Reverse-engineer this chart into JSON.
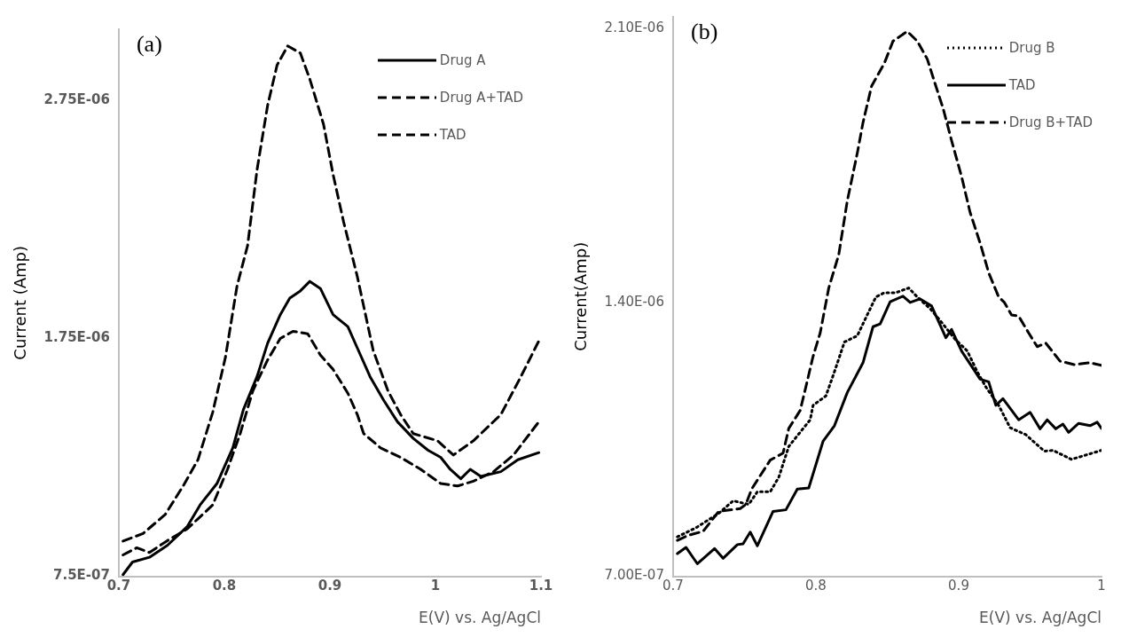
{
  "chart_data": [
    {
      "type": "line",
      "ylabel": "Current (Amp)",
      "xlabel": "E(V) vs. Ag/AgCl",
      "annotations": [
        "(a)"
      ],
      "legend": "top right",
      "marker": "none",
      "xlim": [
        0.7,
        1.1
      ],
      "xticks": [
        0.7,
        0.8,
        0.9,
        1,
        1.1
      ],
      "ylim": [
        7.5e-07,
        3.05e-06
      ],
      "yticks": [
        {
          "value": 7.5e-07,
          "label": "7.5E-07"
        },
        {
          "value": 1.75e-06,
          "label": "1.75E-06"
        },
        {
          "value": 2.75e-06,
          "label": "2.75E-06"
        }
      ],
      "series": [
        {
          "name": "Drug A",
          "color": "#000000",
          "line_style": "solid",
          "x": [
            0.704,
            0.713,
            0.729,
            0.746,
            0.765,
            0.777,
            0.793,
            0.808,
            0.818,
            0.831,
            0.841,
            0.853,
            0.862,
            0.872,
            0.881,
            0.891,
            0.903,
            0.917,
            0.926,
            0.938,
            0.951,
            0.964,
            0.979,
            0.993,
            1.005,
            1.014,
            1.024,
            1.033,
            1.043,
            1.062,
            1.078,
            1.098
          ],
          "values": [
            7.57e-07,
            8.1e-07,
            8.3e-07,
            8.8e-07,
            9.6e-07,
            1.05e-06,
            1.14e-06,
            1.29e-06,
            1.45e-06,
            1.59e-06,
            1.73e-06,
            1.85e-06,
            1.92e-06,
            1.95e-06,
            1.99e-06,
            1.96e-06,
            1.85e-06,
            1.8e-06,
            1.71e-06,
            1.59e-06,
            1.49e-06,
            1.4e-06,
            1.33e-06,
            1.28e-06,
            1.25e-06,
            1.2e-06,
            1.16e-06,
            1.2e-06,
            1.17e-06,
            1.19e-06,
            1.24e-06,
            1.27e-06
          ]
        },
        {
          "name": "Drug A+TAD",
          "color": "#000000",
          "line_style": "dashed",
          "x": [
            0.704,
            0.723,
            0.744,
            0.761,
            0.775,
            0.789,
            0.801,
            0.812,
            0.822,
            0.831,
            0.841,
            0.85,
            0.86,
            0.872,
            0.881,
            0.894,
            0.903,
            0.913,
            0.926,
            0.941,
            0.955,
            0.967,
            0.979,
            1.002,
            1.017,
            1.036,
            1.062,
            1.081,
            1.098
          ],
          "values": [
            8.98e-07,
            9.3e-07,
            1.01e-06,
            1.13e-06,
            1.24e-06,
            1.44e-06,
            1.67e-06,
            1.97e-06,
            2.14e-06,
            2.46e-06,
            2.73e-06,
            2.9e-06,
            2.98e-06,
            2.95e-06,
            2.84e-06,
            2.65e-06,
            2.44e-06,
            2.24e-06,
            2.01e-06,
            1.7e-06,
            1.53e-06,
            1.43e-06,
            1.35e-06,
            1.32e-06,
            1.26e-06,
            1.32e-06,
            1.43e-06,
            1.59e-06,
            1.74e-06
          ]
        },
        {
          "name": "TAD",
          "color": "#000000",
          "line_style": "dashed",
          "x": [
            0.704,
            0.717,
            0.729,
            0.746,
            0.765,
            0.777,
            0.789,
            0.803,
            0.815,
            0.827,
            0.841,
            0.853,
            0.865,
            0.879,
            0.891,
            0.903,
            0.917,
            0.926,
            0.932,
            0.948,
            0.967,
            0.986,
            1.005,
            1.021,
            1.036,
            1.055,
            1.074,
            1.098
          ],
          "values": [
            8.4e-07,
            8.7e-07,
            8.5e-07,
            9e-07,
            9.5e-07,
            1e-06,
            1.05e-06,
            1.2e-06,
            1.35e-06,
            1.53e-06,
            1.66e-06,
            1.75e-06,
            1.78e-06,
            1.77e-06,
            1.68e-06,
            1.62e-06,
            1.52e-06,
            1.43e-06,
            1.35e-06,
            1.29e-06,
            1.25e-06,
            1.2e-06,
            1.14e-06,
            1.13e-06,
            1.15e-06,
            1.19e-06,
            1.26e-06,
            1.4e-06
          ]
        }
      ]
    },
    {
      "type": "line",
      "ylabel": "Current(Amp)",
      "xlabel": "E(V) vs. Ag/AgCl",
      "annotations": [
        "(b)"
      ],
      "legend": "top right",
      "marker": "none",
      "xlim": [
        0.7,
        1.0
      ],
      "xticks": [
        0.7,
        0.8,
        0.9,
        1
      ],
      "ylim": [
        7e-07,
        2.13e-06
      ],
      "yticks": [
        {
          "value": 7e-07,
          "label": "7.00E-07"
        },
        {
          "value": 1.4e-06,
          "label": "1.40E-06"
        },
        {
          "value": 2.1e-06,
          "label": "2.10E-06"
        }
      ],
      "series": [
        {
          "name": "Drug B",
          "color": "#000000",
          "line_style": "dotted",
          "x": [
            0.703,
            0.716,
            0.732,
            0.742,
            0.753,
            0.759,
            0.768,
            0.774,
            0.781,
            0.79,
            0.796,
            0.798,
            0.807,
            0.813,
            0.82,
            0.829,
            0.835,
            0.842,
            0.848,
            0.856,
            0.865,
            0.871,
            0.88,
            0.887,
            0.897,
            0.906,
            0.913,
            0.919,
            0.928,
            0.936,
            0.947,
            0.96,
            0.966,
            0.979,
            0.99,
            1.0
          ],
          "values": [
            8.01e-07,
            8.24e-07,
            8.61e-07,
            8.93e-07,
            8.84e-07,
            9.16e-07,
            9.16e-07,
            9.53e-07,
            1.032e-06,
            1.073e-06,
            1.1e-06,
            1.137e-06,
            1.161e-06,
            1.223e-06,
            1.299e-06,
            1.315e-06,
            1.361e-06,
            1.414e-06,
            1.425e-06,
            1.425e-06,
            1.437e-06,
            1.414e-06,
            1.384e-06,
            1.354e-06,
            1.308e-06,
            1.276e-06,
            1.223e-06,
            1.184e-06,
            1.137e-06,
            1.08e-06,
            1.062e-06,
            1.02e-06,
            1.022e-06,
            9.99e-07,
            1.011e-06,
            1.022e-06
          ]
        },
        {
          "name": "TAD",
          "color": "#000000",
          "line_style": "solid",
          "x": [
            0.703,
            0.709,
            0.717,
            0.729,
            0.735,
            0.745,
            0.749,
            0.754,
            0.759,
            0.77,
            0.779,
            0.787,
            0.795,
            0.805,
            0.813,
            0.822,
            0.833,
            0.84,
            0.845,
            0.852,
            0.861,
            0.866,
            0.873,
            0.881,
            0.891,
            0.895,
            0.902,
            0.915,
            0.921,
            0.926,
            0.931,
            0.942,
            0.95,
            0.957,
            0.962,
            0.968,
            0.973,
            0.977,
            0.984,
            0.992,
            0.997,
            1.0
          ],
          "values": [
            7.58e-07,
            7.74e-07,
            7.32e-07,
            7.71e-07,
            7.46e-07,
            7.81e-07,
            7.83e-07,
            8.13e-07,
            7.78e-07,
            8.66e-07,
            8.7e-07,
            9.23e-07,
            9.26e-07,
            1.045e-06,
            1.085e-06,
            1.17e-06,
            1.246e-06,
            1.338e-06,
            1.345e-06,
            1.402e-06,
            1.416e-06,
            1.4e-06,
            1.409e-06,
            1.391e-06,
            1.31e-06,
            1.331e-06,
            1.276e-06,
            1.204e-06,
            1.197e-06,
            1.137e-06,
            1.154e-06,
            1.1e-06,
            1.119e-06,
            1.077e-06,
            1.1e-06,
            1.077e-06,
            1.089e-06,
            1.068e-06,
            1.091e-06,
            1.085e-06,
            1.094e-06,
            1.078e-06
          ]
        },
        {
          "name": "Drug B+TAD",
          "color": "#000000",
          "line_style": "dashed",
          "x": [
            0.703,
            0.71,
            0.721,
            0.732,
            0.747,
            0.751,
            0.755,
            0.768,
            0.777,
            0.781,
            0.789,
            0.794,
            0.798,
            0.803,
            0.809,
            0.816,
            0.822,
            0.829,
            0.833,
            0.839,
            0.848,
            0.854,
            0.864,
            0.871,
            0.878,
            0.884,
            0.889,
            0.895,
            0.902,
            0.908,
            0.915,
            0.921,
            0.928,
            0.932,
            0.937,
            0.942,
            0.949,
            0.955,
            0.961,
            0.971,
            0.981,
            0.992,
            1.0
          ],
          "values": [
            7.92e-07,
            8.04e-07,
            8.15e-07,
            8.66e-07,
            8.73e-07,
            8.84e-07,
            9.23e-07,
            9.97e-07,
            1.015e-06,
            1.078e-06,
            1.124e-06,
            1.2e-06,
            1.262e-06,
            1.322e-06,
            1.437e-06,
            1.522e-06,
            1.66e-06,
            1.782e-06,
            1.86e-06,
            1.953e-06,
            2.012e-06,
            2.068e-06,
            2.093e-06,
            2.068e-06,
            2.022e-06,
            1.953e-06,
            1.897e-06,
            1.814e-06,
            1.722e-06,
            1.63e-06,
            1.552e-06,
            1.476e-06,
            1.414e-06,
            1.4e-06,
            1.368e-06,
            1.365e-06,
            1.322e-06,
            1.287e-06,
            1.296e-06,
            1.25e-06,
            1.241e-06,
            1.246e-06,
            1.239e-06
          ]
        }
      ]
    }
  ]
}
